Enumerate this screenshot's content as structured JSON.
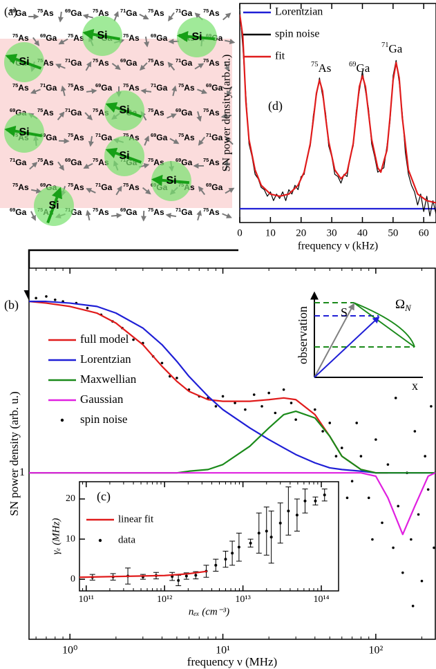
{
  "lattice": {
    "label": "(a)",
    "rows": [
      [
        "69Ga",
        "75As",
        "69Ga",
        "75As",
        "71Ga",
        "75As",
        "71Ga",
        "75As"
      ],
      [
        "75As",
        "69Ga",
        "75As",
        "71Ga",
        "75As",
        "69Ga",
        "75As",
        "69Ga"
      ],
      [
        "69Ga",
        "75As",
        "71Ga",
        "75As",
        "69Ga",
        "75As",
        "71Ga",
        "75As"
      ],
      [
        "75As",
        "71Ga",
        "75As",
        "69Ga",
        "75As",
        "71Ga",
        "75As",
        "69Ga"
      ],
      [
        "69Ga",
        "75As",
        "71Ga",
        "75As",
        "69Ga",
        "75As",
        "69Ga",
        "75As"
      ],
      [
        "75As",
        "69Ga",
        "75As",
        "71Ga",
        "75As",
        "69Ga",
        "75As",
        "71Ga"
      ],
      [
        "71Ga",
        "75As",
        "69Ga",
        "75As",
        "71Ga",
        "75As",
        "69Ga",
        "75As"
      ],
      [
        "75As",
        "69Ga",
        "75As",
        "71Ga",
        "75As",
        "69Ga",
        "75As",
        "69Ga"
      ],
      [
        "69Ga",
        "75As",
        "71Ga",
        "75As",
        "69Ga",
        "75As",
        "71Ga",
        "75As"
      ]
    ],
    "silicon": [
      "Si",
      "Si",
      "Si",
      "Si",
      "Si",
      "Si",
      "Si",
      "Si"
    ]
  },
  "schematic": {
    "spin": "S",
    "field": "Ω",
    "field_sub": "N",
    "axis_y": "observation",
    "axis_x": "x"
  },
  "chart_data": [
    {
      "type": "line",
      "label": "(d)",
      "x_label": "frequency ν (kHz)",
      "y_label": "SN power density (arb. u.)",
      "xlim": [
        0,
        64
      ],
      "xticks": [
        0,
        10,
        20,
        30,
        40,
        50,
        60
      ],
      "ylim": [
        0,
        1
      ],
      "annotations": [
        "75As",
        "69Ga",
        "71Ga"
      ],
      "series": [
        {
          "name": "Lorentzian",
          "color": "#1f1fd6",
          "x": [
            0,
            64
          ],
          "values": [
            0.063,
            0.063
          ]
        },
        {
          "name": "spin noise",
          "color": "#000000",
          "x": [
            0,
            1,
            2,
            3,
            4,
            5,
            6,
            7,
            8,
            9,
            10,
            11,
            12,
            13,
            14,
            15,
            16,
            17,
            18,
            19,
            20,
            21,
            22,
            23,
            24,
            25,
            26,
            27,
            28,
            29,
            30,
            31,
            32,
            33,
            34,
            35,
            36,
            37,
            38,
            39,
            40,
            41,
            42,
            43,
            44,
            45,
            46,
            47,
            48,
            49,
            50,
            51,
            52,
            53,
            54,
            55,
            56,
            57,
            58,
            59,
            60,
            61,
            62,
            63,
            64
          ],
          "values": [
            0.97,
            0.8,
            0.58,
            0.36,
            0.3,
            0.22,
            0.2,
            0.16,
            0.15,
            0.12,
            0.14,
            0.1,
            0.13,
            0.11,
            0.14,
            0.1,
            0.15,
            0.13,
            0.17,
            0.15,
            0.21,
            0.22,
            0.3,
            0.35,
            0.49,
            0.58,
            0.66,
            0.58,
            0.5,
            0.35,
            0.3,
            0.22,
            0.21,
            0.18,
            0.22,
            0.21,
            0.3,
            0.35,
            0.51,
            0.6,
            0.69,
            0.6,
            0.52,
            0.36,
            0.3,
            0.23,
            0.24,
            0.25,
            0.35,
            0.46,
            0.67,
            0.74,
            0.64,
            0.5,
            0.32,
            0.22,
            0.17,
            0.14,
            0.08,
            0.13,
            0.05,
            0.12,
            0.03,
            0.1,
            0.04
          ]
        },
        {
          "name": "fit",
          "color": "#e01b1b",
          "x": [
            0,
            1,
            2,
            3,
            5,
            7,
            10,
            13,
            16,
            19,
            21,
            23,
            24,
            25,
            26,
            27,
            28,
            29,
            31,
            33,
            35,
            37,
            38,
            39,
            40,
            41,
            42,
            43,
            45,
            46,
            48,
            49,
            50,
            51,
            52,
            53,
            55,
            58,
            61,
            64
          ],
          "values": [
            0.95,
            0.85,
            0.55,
            0.38,
            0.24,
            0.17,
            0.13,
            0.12,
            0.13,
            0.17,
            0.23,
            0.36,
            0.47,
            0.59,
            0.65,
            0.6,
            0.48,
            0.37,
            0.24,
            0.2,
            0.23,
            0.36,
            0.49,
            0.62,
            0.67,
            0.62,
            0.5,
            0.38,
            0.25,
            0.23,
            0.33,
            0.48,
            0.65,
            0.73,
            0.66,
            0.48,
            0.24,
            0.13,
            0.1,
            0.09
          ]
        }
      ]
    },
    {
      "type": "line",
      "label": "(b)",
      "x_label": "frequency ν (MHz)",
      "y_label": "SN power density (arb. u.)",
      "xscale": "log",
      "xlim": [
        0.54,
        245
      ],
      "xticks": [
        {
          "value": 1,
          "label": "10⁰"
        },
        {
          "value": 10,
          "label": "10¹"
        },
        {
          "value": 100,
          "label": "10²"
        }
      ],
      "ylim": [
        0,
        2.23
      ],
      "yticks": [
        1
      ],
      "x": [
        0.54,
        0.7,
        1,
        1.5,
        2,
        3,
        4,
        5,
        6,
        8,
        10,
        15,
        20,
        25,
        30,
        40,
        50,
        60,
        80,
        100,
        120,
        150,
        180,
        220,
        245
      ],
      "series": [
        {
          "name": "full model",
          "color": "#e01b1b",
          "values": [
            2.03,
            2.02,
            2.0,
            1.96,
            1.9,
            1.77,
            1.64,
            1.55,
            1.49,
            1.44,
            1.43,
            1.43,
            1.44,
            1.45,
            1.44,
            1.35,
            1.22,
            1.1,
            1.02,
            1.0,
            1.0,
            null,
            null,
            null,
            null
          ]
        },
        {
          "name": "Lorentzian",
          "color": "#1f1fd6",
          "values": [
            2.03,
            2.03,
            2.02,
            2.0,
            1.96,
            1.87,
            1.77,
            1.67,
            1.58,
            1.46,
            1.38,
            1.27,
            1.2,
            1.15,
            1.11,
            1.06,
            1.03,
            1.02,
            1.01,
            1.0,
            1.0,
            1.0,
            1.0,
            1.0,
            1.0
          ]
        },
        {
          "name": "Maxwellian",
          "color": "#1a8a1a",
          "values": [
            1.0,
            1.0,
            1.0,
            1.0,
            1.0,
            1.0,
            1.0,
            1.0,
            1.01,
            1.02,
            1.05,
            1.16,
            1.27,
            1.35,
            1.37,
            1.33,
            1.22,
            1.1,
            1.02,
            1.0,
            1.0,
            1.0,
            1.0,
            1.0,
            1.0
          ]
        },
        {
          "name": "Gaussian",
          "color": "#e020e0",
          "values": [
            1.0,
            1.0,
            1.0,
            1.0,
            1.0,
            1.0,
            1.0,
            1.0,
            1.0,
            1.0,
            1.0,
            1.0,
            1.0,
            1.0,
            1.0,
            1.0,
            1.0,
            1.0,
            1.0,
            0.98,
            0.85,
            0.63,
            0.8,
            0.98,
            1.0
          ]
        },
        {
          "name": "spin noise",
          "color": "#000000",
          "marker": "dot",
          "x": [
            0.6,
            0.7,
            0.8,
            0.9,
            1.1,
            1.3,
            1.6,
            1.9,
            2.2,
            2.6,
            3,
            3.5,
            4,
            4.5,
            5,
            6,
            7,
            8,
            9,
            10,
            12,
            14,
            16,
            18,
            20,
            22,
            25,
            28,
            30,
            35,
            40,
            45,
            50,
            55,
            60,
            70,
            80,
            90,
            100,
            110,
            120,
            130,
            140,
            150,
            160,
            170,
            180,
            190,
            200,
            210,
            220,
            230,
            240,
            245,
            65,
            75,
            95,
            135,
            175,
            205
          ],
          "values": [
            2.05,
            2.06,
            2.04,
            2.03,
            2.02,
            1.99,
            1.95,
            1.91,
            1.87,
            1.8,
            1.78,
            1.7,
            1.66,
            1.58,
            1.57,
            1.5,
            1.46,
            1.45,
            1.4,
            1.46,
            1.42,
            1.38,
            1.47,
            1.4,
            1.48,
            1.36,
            1.5,
            1.42,
            1.32,
            1.55,
            1.38,
            1.25,
            1.3,
            1.1,
            1.15,
            0.95,
            1.1,
            0.85,
            1.2,
            0.7,
            1.05,
            0.55,
            0.8,
            0.4,
            1.0,
            0.6,
            1.25,
            0.75,
            0.35,
            1.1,
            0.9,
            1.4,
            0.55,
            1.0,
            0.85,
            1.3,
            0.6,
            1.45,
            0.2,
            1.6
          ]
        }
      ]
    },
    {
      "type": "scatter",
      "label": "(c)",
      "x_label": "nₑₓ (cm⁻³)",
      "y_label": "γₑ (MHz)",
      "xscale": "log",
      "xlim": [
        82000000000.0,
        166000000000000.0
      ],
      "xticks": [
        {
          "value": 100000000000.0,
          "label": "10¹¹"
        },
        {
          "value": 1000000000000.0,
          "label": "10¹²"
        },
        {
          "value": 10000000000000.0,
          "label": "10¹³"
        },
        {
          "value": 100000000000000.0,
          "label": "10¹⁴"
        }
      ],
      "ylim": [
        -2.9,
        24.3
      ],
      "yticks": [
        0,
        10,
        20
      ],
      "series": [
        {
          "name": "linear fit",
          "color": "#e01b1b",
          "x": [
            82000000000.0,
            1000000000000.0,
            2000000000000.0,
            3500000000000.0
          ],
          "values": [
            0.5,
            0.93,
            1.36,
            2.0
          ]
        },
        {
          "name": "data",
          "color": "#000000",
          "marker": "dot",
          "x": [
            120000000000.0,
            220000000000.0,
            340000000000.0,
            530000000000.0,
            780000000000.0,
            1250000000000.0,
            1500000000000.0,
            1900000000000.0,
            2500000000000.0,
            3400000000000.0,
            4500000000000.0,
            6000000000000.0,
            7300000000000.0,
            8900000000000.0,
            12500000000000.0,
            16000000000000.0,
            20000000000000.0,
            23000000000000.0,
            30000000000000.0,
            38000000000000.0,
            49000000000000.0,
            62000000000000.0,
            84000000000000.0,
            110000000000000.0
          ],
          "values": [
            0.5,
            0.6,
            0.8,
            0.6,
            0.9,
            0.7,
            -0.3,
            0.8,
            1.0,
            2.0,
            3.5,
            5,
            6.5,
            8,
            9,
            11.5,
            12,
            10.5,
            14,
            17,
            16,
            19.5,
            19.5,
            21
          ],
          "errors": [
            0.7,
            0.8,
            2.0,
            0.6,
            0.8,
            1.0,
            1.3,
            0.8,
            0.9,
            1.5,
            1.5,
            2,
            3,
            3.5,
            1,
            5,
            6,
            6.5,
            5,
            6,
            4,
            3,
            1,
            1.5
          ]
        }
      ]
    }
  ]
}
